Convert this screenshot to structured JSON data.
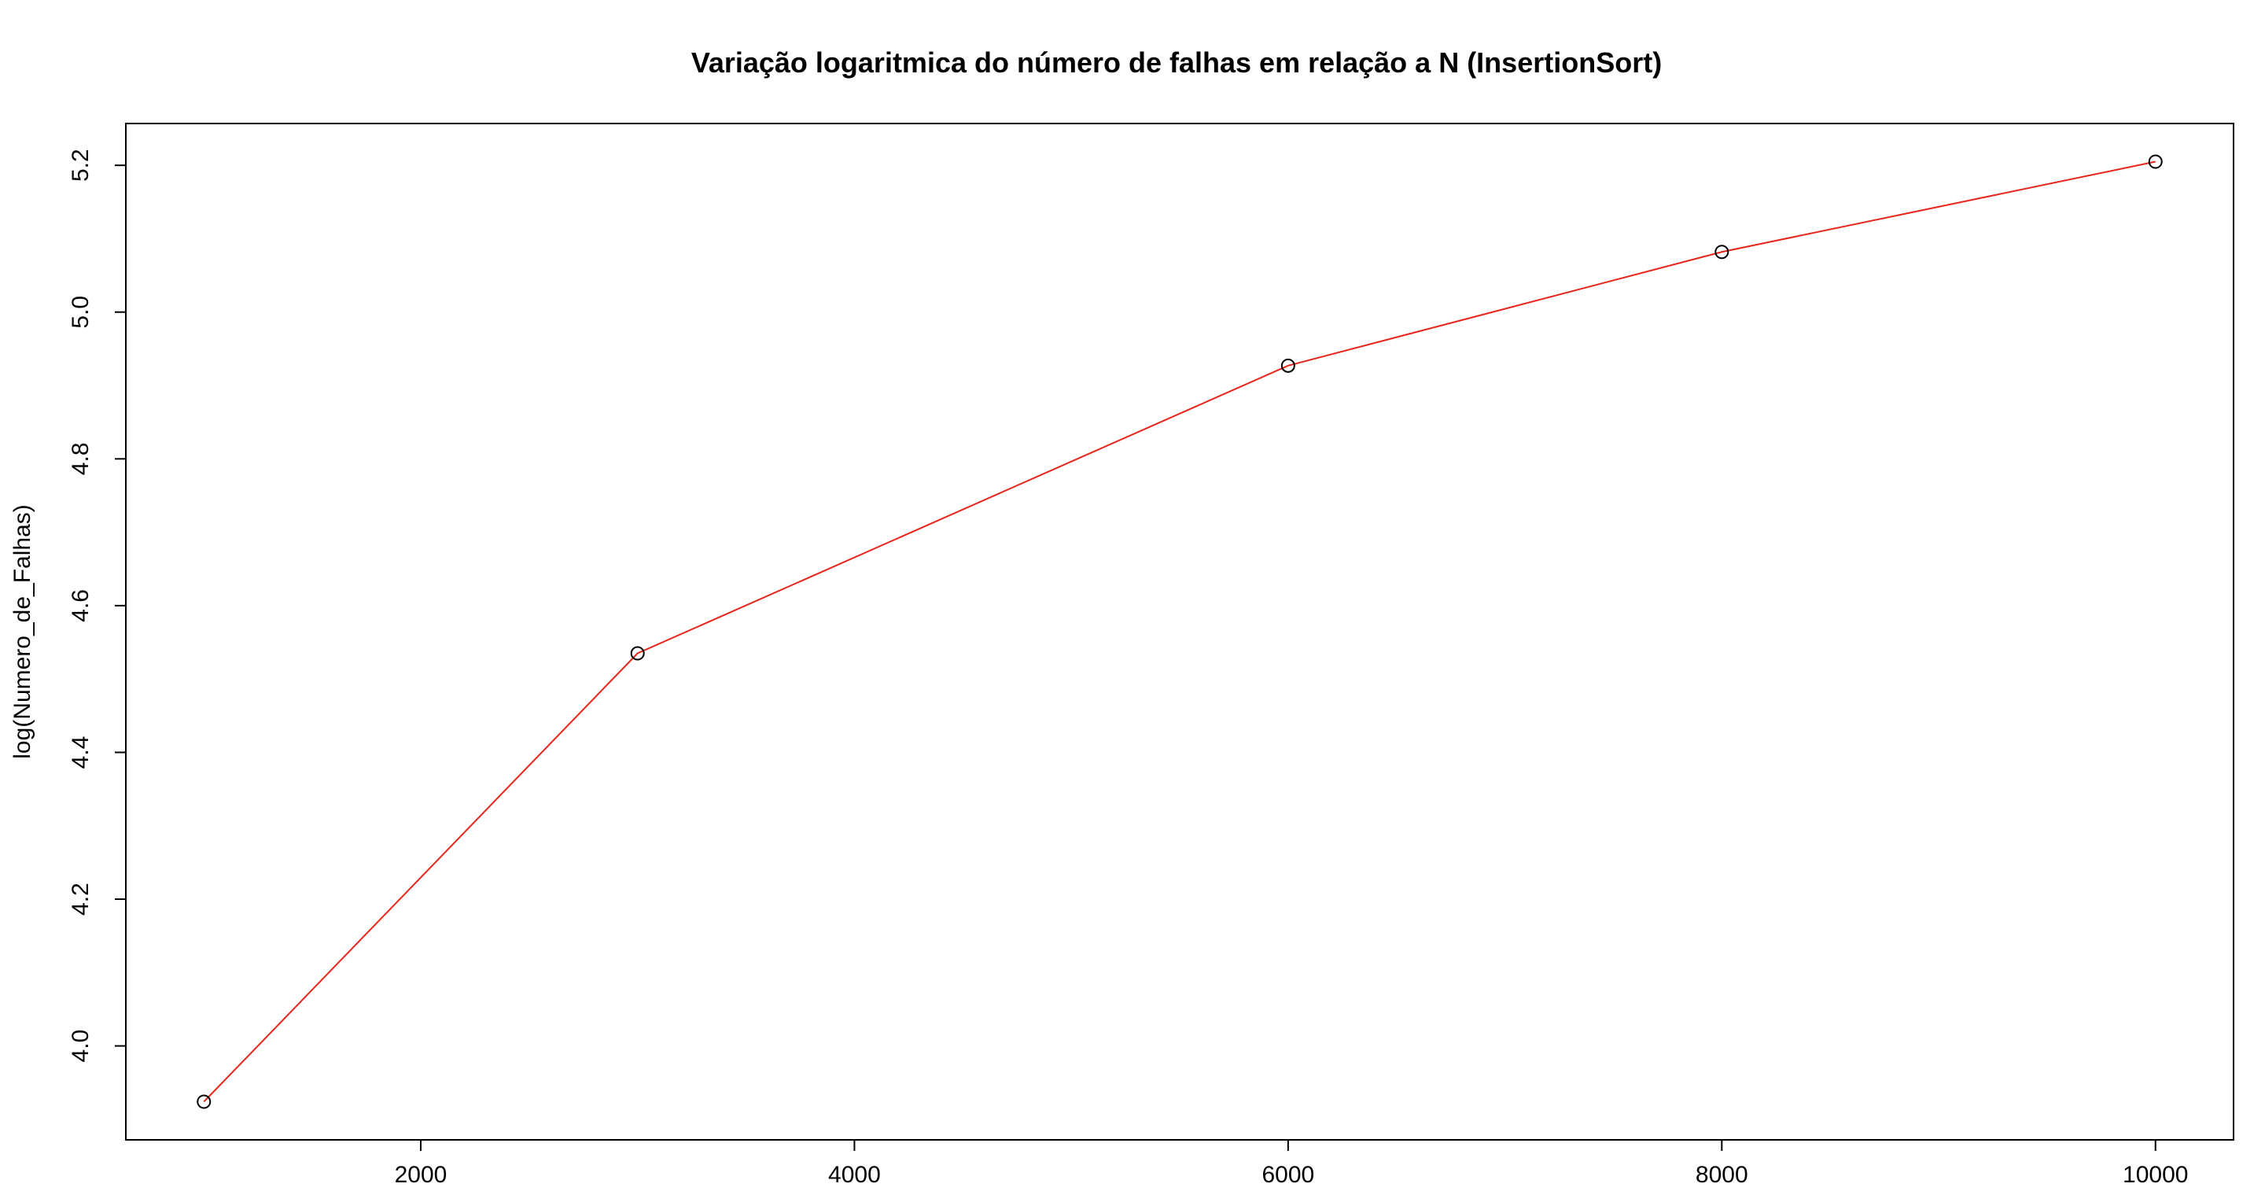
{
  "chart_data": {
    "type": "line",
    "title": "Variação logaritmica do número de falhas em relação a N (InsertionSort)",
    "xlabel": "",
    "ylabel": "log(Numero_de_Falhas)",
    "x": [
      1000,
      3000,
      6000,
      8000,
      10000
    ],
    "series": [
      {
        "values": [
          3.924,
          4.535,
          4.927,
          5.082,
          5.205
        ]
      }
    ],
    "xlim": [
      640,
      10360
    ],
    "ylim": [
      3.872,
      5.257
    ],
    "xticks": [
      2000,
      4000,
      6000,
      8000,
      10000
    ],
    "xtick_labels": [
      "2000",
      "4000",
      "6000",
      "8000",
      "10000"
    ],
    "yticks": [
      4.0,
      4.2,
      4.4,
      4.6,
      4.8,
      5.0,
      5.2
    ],
    "ytick_labels": [
      "4.0",
      "4.2",
      "4.4",
      "4.6",
      "4.8",
      "5.0",
      "5.2"
    ],
    "line_color": "#e8251a",
    "marker_color": "#000000",
    "marker": "open-circle",
    "grid": false
  }
}
